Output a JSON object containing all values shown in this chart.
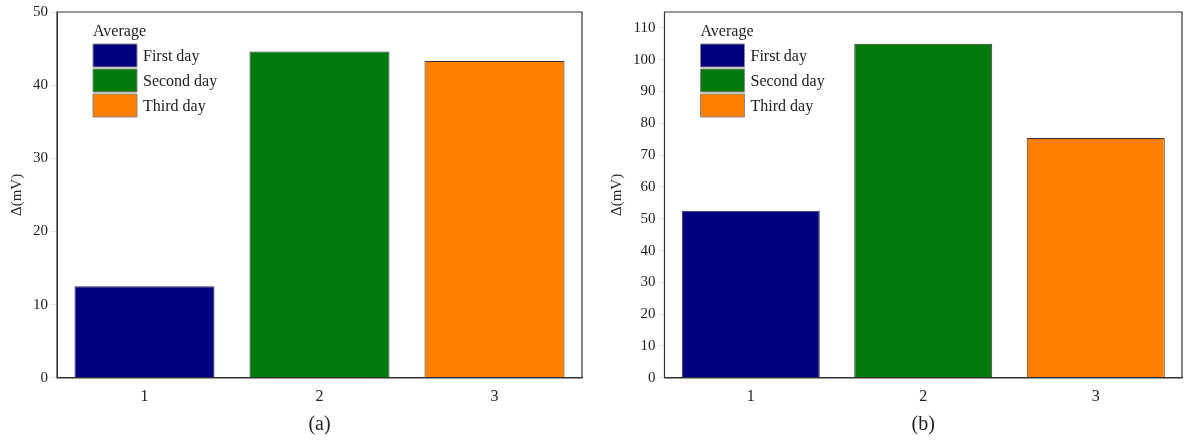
{
  "chart_data": [
    {
      "type": "bar",
      "xlabel": "(a)",
      "ylabel": "Δ(mV)",
      "legend_title": "Average",
      "categories": [
        "1",
        "2",
        "3"
      ],
      "series": [
        {
          "name": "First day",
          "color": "#000080",
          "values": [
            12.5,
            null,
            null
          ]
        },
        {
          "name": "Second day",
          "color": "#007a0a",
          "values": [
            null,
            44.6,
            null
          ]
        },
        {
          "name": "Third day",
          "color": "#ff8000",
          "values": [
            null,
            null,
            43.3
          ]
        }
      ],
      "ylim": [
        0,
        50
      ],
      "yticks": [
        0,
        10,
        20,
        30,
        40,
        50
      ],
      "grid": false,
      "legend": "top left"
    },
    {
      "type": "bar",
      "xlabel": "(b)",
      "ylabel": "Δ(mV)",
      "legend_title": "Average",
      "categories": [
        "1",
        "2",
        "3"
      ],
      "series": [
        {
          "name": "First day",
          "color": "#000080",
          "values": [
            52.5,
            null,
            null
          ]
        },
        {
          "name": "Second day",
          "color": "#007a0a",
          "values": [
            null,
            105,
            null
          ]
        },
        {
          "name": "Third day",
          "color": "#ff8000",
          "values": [
            null,
            null,
            75.4
          ]
        }
      ],
      "ylim": [
        0,
        115
      ],
      "yticks": [
        0,
        10,
        20,
        30,
        40,
        50,
        60,
        70,
        80,
        90,
        100,
        110
      ],
      "grid": false,
      "legend": "top left"
    }
  ]
}
